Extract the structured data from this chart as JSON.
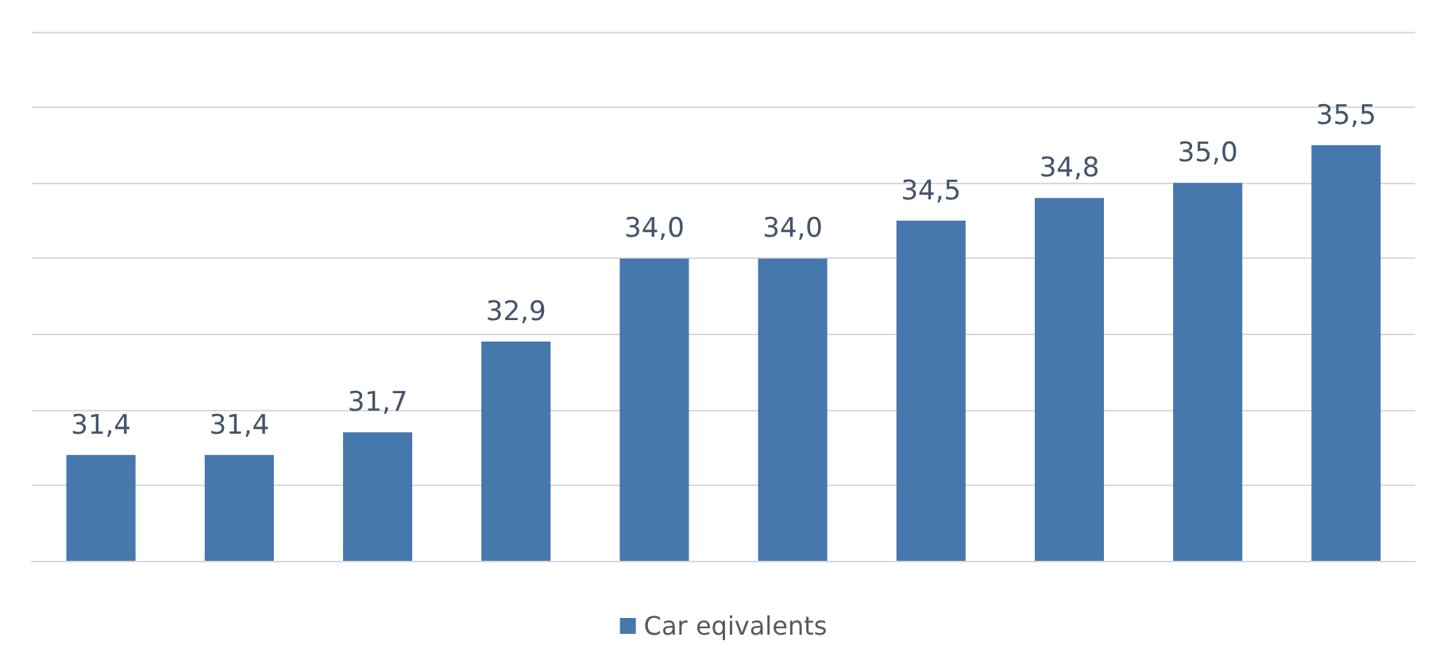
{
  "chart_data": {
    "type": "bar",
    "categories": [
      null,
      null,
      null,
      null,
      null,
      null,
      null,
      null,
      null,
      null
    ],
    "series": [
      {
        "name": "Car eqivalents",
        "color": "#4677ad",
        "values": [
          31.4,
          31.4,
          31.7,
          32.9,
          34.0,
          34.0,
          34.5,
          34.8,
          35.0,
          35.5
        ],
        "value_labels": [
          "31,4",
          "31,4",
          "31,7",
          "32,9",
          "34,0",
          "34,0",
          "34,5",
          "34,8",
          "35,0",
          "35,5"
        ]
      }
    ],
    "ylim": [
      30,
      37
    ],
    "yticks": [
      {
        "value": 30,
        "label": null
      },
      {
        "value": 31,
        "label": null
      },
      {
        "value": 32,
        "label": null
      },
      {
        "value": 33,
        "label": null
      },
      {
        "value": 34,
        "label": null
      },
      {
        "value": 35,
        "label": null
      },
      {
        "value": 36,
        "label": null
      },
      {
        "value": 37,
        "label": null
      }
    ],
    "grid": "y",
    "legend": "bottom"
  }
}
